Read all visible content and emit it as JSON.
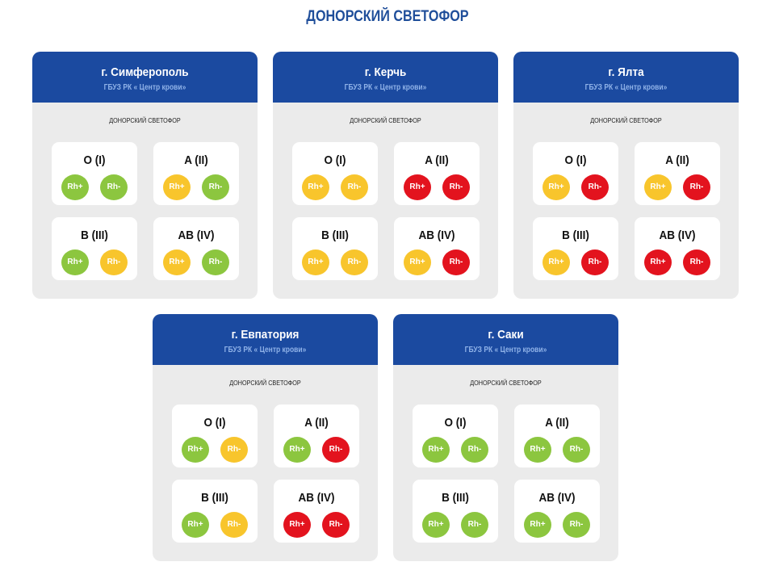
{
  "title": "ДОНОРСКИЙ СВЕТОФОР",
  "colors": {
    "header": "#1b4aa0",
    "green": "#8cc63f",
    "yellow": "#f8c52c",
    "red": "#e3131e"
  },
  "rh_labels": [
    "Rh+",
    "Rh-"
  ],
  "cards": [
    {
      "city": "г. Симферополь",
      "org": "ГБУЗ РК « Центр крови»",
      "label": "ДОНОРСКИЙ СВЕТОФОР",
      "groups": [
        {
          "name": "O (I)",
          "status": [
            "green",
            "green"
          ]
        },
        {
          "name": "A (II)",
          "status": [
            "yellow",
            "green"
          ]
        },
        {
          "name": "B (III)",
          "status": [
            "green",
            "yellow"
          ]
        },
        {
          "name": "AB (IV)",
          "status": [
            "yellow",
            "green"
          ]
        }
      ]
    },
    {
      "city": "г. Керчь",
      "org": "ГБУЗ РК « Центр крови»",
      "label": "ДОНОРСКИЙ СВЕТОФОР",
      "groups": [
        {
          "name": "O (I)",
          "status": [
            "yellow",
            "yellow"
          ]
        },
        {
          "name": "A (II)",
          "status": [
            "red",
            "red"
          ]
        },
        {
          "name": "B (III)",
          "status": [
            "yellow",
            "yellow"
          ]
        },
        {
          "name": "AB (IV)",
          "status": [
            "yellow",
            "red"
          ]
        }
      ]
    },
    {
      "city": "г. Ялта",
      "org": "ГБУЗ РК « Центр крови»",
      "label": "ДОНОРСКИЙ СВЕТОФОР",
      "groups": [
        {
          "name": "O (I)",
          "status": [
            "yellow",
            "red"
          ]
        },
        {
          "name": "A (II)",
          "status": [
            "yellow",
            "red"
          ]
        },
        {
          "name": "B (III)",
          "status": [
            "yellow",
            "red"
          ]
        },
        {
          "name": "AB (IV)",
          "status": [
            "red",
            "red"
          ]
        }
      ]
    },
    {
      "city": "г. Евпатория",
      "org": "ГБУЗ РК « Центр крови»",
      "label": "ДОНОРСКИЙ СВЕТОФОР",
      "groups": [
        {
          "name": "O (I)",
          "status": [
            "green",
            "yellow"
          ]
        },
        {
          "name": "A (II)",
          "status": [
            "green",
            "red"
          ]
        },
        {
          "name": "B (III)",
          "status": [
            "green",
            "yellow"
          ]
        },
        {
          "name": "AB (IV)",
          "status": [
            "red",
            "red"
          ]
        }
      ]
    },
    {
      "city": "г. Саки",
      "org": "ГБУЗ РК « Центр крови»",
      "label": "ДОНОРСКИЙ СВЕТОФОР",
      "groups": [
        {
          "name": "O (I)",
          "status": [
            "green",
            "green"
          ]
        },
        {
          "name": "A (II)",
          "status": [
            "green",
            "green"
          ]
        },
        {
          "name": "B (III)",
          "status": [
            "green",
            "green"
          ]
        },
        {
          "name": "AB (IV)",
          "status": [
            "green",
            "green"
          ]
        }
      ]
    }
  ]
}
